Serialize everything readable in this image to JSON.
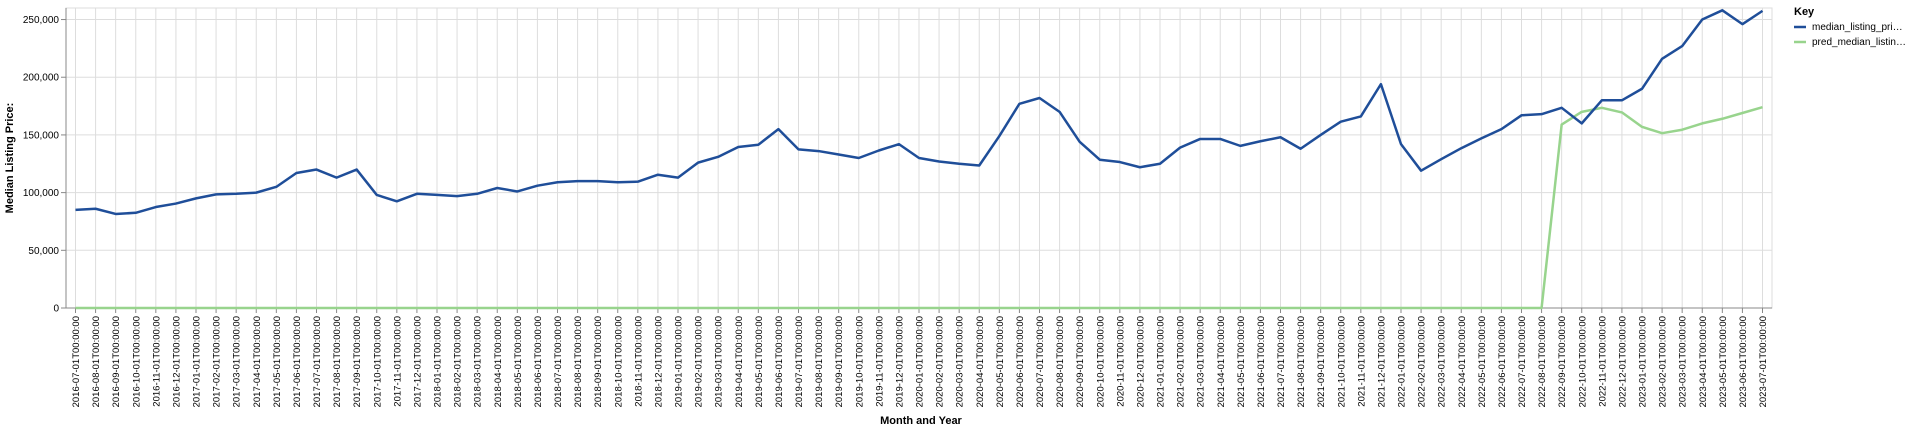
{
  "chart_data": {
    "type": "line",
    "xlabel": "Month and Year",
    "ylabel": "Median Listing Price:",
    "ylim": [
      0,
      260000
    ],
    "y_ticks": [
      0,
      50000,
      100000,
      150000,
      200000,
      250000
    ],
    "y_tick_labels": [
      "0",
      "50,000",
      "100,000",
      "150,000",
      "200,000",
      "250,000"
    ],
    "grid": true,
    "legend": {
      "title": "Key",
      "placement": "top-right",
      "entries": [
        "median_listing_pri…",
        "pred_median_listin…"
      ]
    },
    "x": [
      "2016-07-01T00:00:00",
      "2016-08-01T00:00:00",
      "2016-09-01T00:00:00",
      "2016-10-01T00:00:00",
      "2016-11-01T00:00:00",
      "2016-12-01T00:00:00",
      "2017-01-01T00:00:00",
      "2017-02-01T00:00:00",
      "2017-03-01T00:00:00",
      "2017-04-01T00:00:00",
      "2017-05-01T00:00:00",
      "2017-06-01T00:00:00",
      "2017-07-01T00:00:00",
      "2017-08-01T00:00:00",
      "2017-09-01T00:00:00",
      "2017-10-01T00:00:00",
      "2017-11-01T00:00:00",
      "2017-12-01T00:00:00",
      "2018-01-01T00:00:00",
      "2018-02-01T00:00:00",
      "2018-03-01T00:00:00",
      "2018-04-01T00:00:00",
      "2018-05-01T00:00:00",
      "2018-06-01T00:00:00",
      "2018-07-01T00:00:00",
      "2018-08-01T00:00:00",
      "2018-09-01T00:00:00",
      "2018-10-01T00:00:00",
      "2018-11-01T00:00:00",
      "2018-12-01T00:00:00",
      "2019-01-01T00:00:00",
      "2019-02-01T00:00:00",
      "2019-03-01T00:00:00",
      "2019-04-01T00:00:00",
      "2019-05-01T00:00:00",
      "2019-06-01T00:00:00",
      "2019-07-01T00:00:00",
      "2019-08-01T00:00:00",
      "2019-09-01T00:00:00",
      "2019-10-01T00:00:00",
      "2019-11-01T00:00:00",
      "2019-12-01T00:00:00",
      "2020-01-01T00:00:00",
      "2020-02-01T00:00:00",
      "2020-03-01T00:00:00",
      "2020-04-01T00:00:00",
      "2020-05-01T00:00:00",
      "2020-06-01T00:00:00",
      "2020-07-01T00:00:00",
      "2020-08-01T00:00:00",
      "2020-09-01T00:00:00",
      "2020-10-01T00:00:00",
      "2020-11-01T00:00:00",
      "2020-12-01T00:00:00",
      "2021-01-01T00:00:00",
      "2021-02-01T00:00:00",
      "2021-03-01T00:00:00",
      "2021-04-01T00:00:00",
      "2021-05-01T00:00:00",
      "2021-06-01T00:00:00",
      "2021-07-01T00:00:00",
      "2021-08-01T00:00:00",
      "2021-09-01T00:00:00",
      "2021-10-01T00:00:00",
      "2021-11-01T00:00:00",
      "2021-12-01T00:00:00",
      "2022-01-01T00:00:00",
      "2022-02-01T00:00:00",
      "2022-03-01T00:00:00",
      "2022-04-01T00:00:00",
      "2022-05-01T00:00:00",
      "2022-06-01T00:00:00",
      "2022-07-01T00:00:00",
      "2022-08-01T00:00:00",
      "2022-09-01T00:00:00",
      "2022-10-01T00:00:00",
      "2022-11-01T00:00:00",
      "2022-12-01T00:00:00",
      "2023-01-01T00:00:00",
      "2023-02-01T00:00:00",
      "2023-03-01T00:00:00",
      "2023-04-01T00:00:00",
      "2023-05-01T00:00:00",
      "2023-06-01T00:00:00",
      "2023-07-01T00:00:00"
    ],
    "series": [
      {
        "name": "median_listing_pri…",
        "color": "#1f4e99",
        "values": [
          85000,
          86000,
          81500,
          82500,
          87500,
          90500,
          95000,
          98500,
          99000,
          100000,
          105000,
          117000,
          120000,
          113000,
          120000,
          98000,
          92500,
          99000,
          98000,
          97000,
          99000,
          104000,
          101000,
          106000,
          109000,
          110000,
          110000,
          109000,
          109500,
          115500,
          113000,
          126000,
          131000,
          139500,
          141500,
          155000,
          137500,
          136000,
          133000,
          130000,
          136500,
          142000,
          130000,
          127000,
          125000,
          123500,
          149000,
          177000,
          182000,
          170000,
          144000,
          128500,
          126500,
          122000,
          125000,
          139000,
          146500,
          146500,
          140500,
          144500,
          148000,
          138000,
          150000,
          161500,
          166000,
          194000,
          142000,
          119000,
          129000,
          138500,
          147000,
          155000,
          167000,
          168000,
          173500,
          160000,
          180000,
          180000,
          190000,
          216000,
          227000,
          250000,
          258000,
          246000,
          257500
        ]
      },
      {
        "name": "pred_median_listin…",
        "color": "#98d48d",
        "values": [
          0,
          0,
          0,
          0,
          0,
          0,
          0,
          0,
          0,
          0,
          0,
          0,
          0,
          0,
          0,
          0,
          0,
          0,
          0,
          0,
          0,
          0,
          0,
          0,
          0,
          0,
          0,
          0,
          0,
          0,
          0,
          0,
          0,
          0,
          0,
          0,
          0,
          0,
          0,
          0,
          0,
          0,
          0,
          0,
          0,
          0,
          0,
          0,
          0,
          0,
          0,
          0,
          0,
          0,
          0,
          0,
          0,
          0,
          0,
          0,
          0,
          0,
          0,
          0,
          0,
          0,
          0,
          0,
          0,
          0,
          0,
          0,
          0,
          0,
          159000,
          170000,
          173500,
          169500,
          157000,
          151500,
          154500,
          160000,
          164000,
          169000,
          174000
        ]
      }
    ]
  }
}
